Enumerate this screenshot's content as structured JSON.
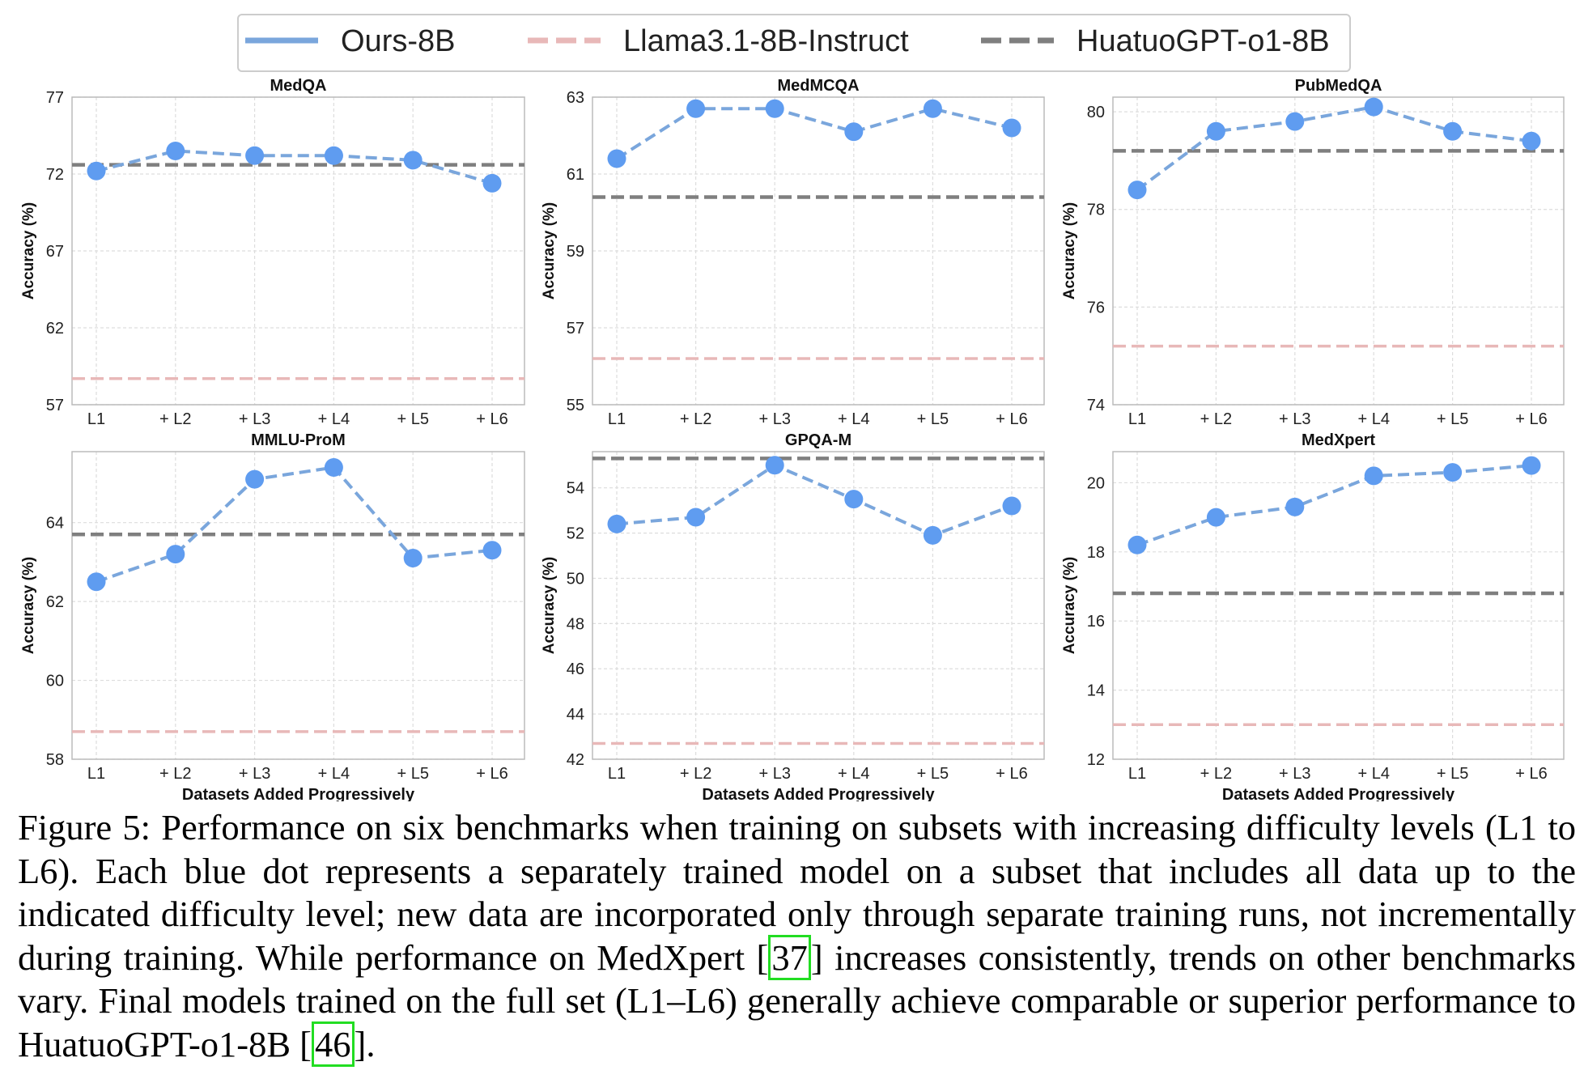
{
  "legend": {
    "items": [
      {
        "name": "Ours-8B",
        "color": "#7aa6dc",
        "style": "solid"
      },
      {
        "name": "Llama3.1-8B-Instruct",
        "color": "#e8b8b8",
        "style": "dashed"
      },
      {
        "name": "HuatuoGPT-o1-8B",
        "color": "#7f7f7f",
        "style": "dashed"
      }
    ],
    "placement": "top-center"
  },
  "chart_data": [
    {
      "type": "line",
      "title": "MedQA",
      "ylabel": "Accuracy (%)",
      "xlabel": "",
      "categories": [
        "L1",
        "+ L2",
        "+ L3",
        "+ L4",
        "+ L5",
        "+ L6"
      ],
      "ylim": [
        57,
        77
      ],
      "yticks": [
        "57",
        "62",
        "67",
        "72",
        "77"
      ],
      "series": [
        {
          "name": "Ours-8B",
          "values": [
            72.2,
            73.5,
            73.2,
            73.2,
            72.9,
            71.4
          ]
        }
      ],
      "baselines": {
        "Llama3.1-8B-Instruct": 58.7,
        "HuatuoGPT-o1-8B": 72.6
      }
    },
    {
      "type": "line",
      "title": "MedMCQA",
      "ylabel": "Accuracy (%)",
      "xlabel": "",
      "categories": [
        "L1",
        "+ L2",
        "+ L3",
        "+ L4",
        "+ L5",
        "+ L6"
      ],
      "ylim": [
        55,
        63
      ],
      "yticks": [
        "55",
        "57",
        "59",
        "61",
        "63"
      ],
      "series": [
        {
          "name": "Ours-8B",
          "values": [
            61.4,
            62.7,
            62.7,
            62.1,
            62.7,
            62.2
          ]
        }
      ],
      "baselines": {
        "Llama3.1-8B-Instruct": 56.2,
        "HuatuoGPT-o1-8B": 60.4
      }
    },
    {
      "type": "line",
      "title": "PubMedQA",
      "ylabel": "Accuracy (%)",
      "xlabel": "",
      "categories": [
        "L1",
        "+ L2",
        "+ L3",
        "+ L4",
        "+ L5",
        "+ L6"
      ],
      "ylim": [
        74,
        80.3
      ],
      "yticks": [
        "74",
        "76",
        "78",
        "80"
      ],
      "series": [
        {
          "name": "Ours-8B",
          "values": [
            78.4,
            79.6,
            79.8,
            80.1,
            79.6,
            79.4
          ]
        }
      ],
      "baselines": {
        "Llama3.1-8B-Instruct": 75.2,
        "HuatuoGPT-o1-8B": 79.2
      }
    },
    {
      "type": "line",
      "title": "MMLU-ProM",
      "ylabel": "Accuracy (%)",
      "xlabel": "Datasets Added Progressively",
      "categories": [
        "L1",
        "+ L2",
        "+ L3",
        "+ L4",
        "+ L5",
        "+ L6"
      ],
      "ylim": [
        58,
        65.8
      ],
      "yticks": [
        "58",
        "60",
        "62",
        "64"
      ],
      "series": [
        {
          "name": "Ours-8B",
          "values": [
            62.5,
            63.2,
            65.1,
            65.4,
            63.1,
            63.3
          ]
        }
      ],
      "baselines": {
        "Llama3.1-8B-Instruct": 58.7,
        "HuatuoGPT-o1-8B": 63.7
      }
    },
    {
      "type": "line",
      "title": "GPQA-M",
      "ylabel": "Accuracy (%)",
      "xlabel": "Datasets Added Progressively",
      "categories": [
        "L1",
        "+ L2",
        "+ L3",
        "+ L4",
        "+ L5",
        "+ L6"
      ],
      "ylim": [
        42,
        55.6
      ],
      "yticks": [
        "42",
        "44",
        "46",
        "48",
        "50",
        "52",
        "54"
      ],
      "series": [
        {
          "name": "Ours-8B",
          "values": [
            52.4,
            52.7,
            55.0,
            53.5,
            51.9,
            53.2
          ]
        }
      ],
      "baselines": {
        "Llama3.1-8B-Instruct": 42.7,
        "HuatuoGPT-o1-8B": 55.3
      }
    },
    {
      "type": "line",
      "title": "MedXpert",
      "ylabel": "Accuracy (%)",
      "xlabel": "Datasets Added Progressively",
      "categories": [
        "L1",
        "+ L2",
        "+ L3",
        "+ L4",
        "+ L5",
        "+ L6"
      ],
      "ylim": [
        12,
        20.9
      ],
      "yticks": [
        "12",
        "14",
        "16",
        "18",
        "20"
      ],
      "series": [
        {
          "name": "Ours-8B",
          "values": [
            18.2,
            19.0,
            19.3,
            20.2,
            20.3,
            20.5
          ]
        }
      ],
      "baselines": {
        "Llama3.1-8B-Instruct": 13.0,
        "HuatuoGPT-o1-8B": 16.8
      }
    }
  ],
  "caption": {
    "part1": "Figure 5: Performance on six benchmarks when training on subsets with increasing difficulty levels (L1 to L6). Each blue dot represents a separately trained model on a subset that includes all data up to the indicated difficulty level; new data are incorporated only through separate training runs, not incrementally during training. While performance on MedXpert [",
    "cite1": "37",
    "part2": "] increases consistently, trends on other benchmarks vary. Final models trained on the full set (L1–L6) generally achieve comparable or superior performance to HuatuoGPT-o1-8B [",
    "cite2": "46",
    "part3": "]."
  }
}
